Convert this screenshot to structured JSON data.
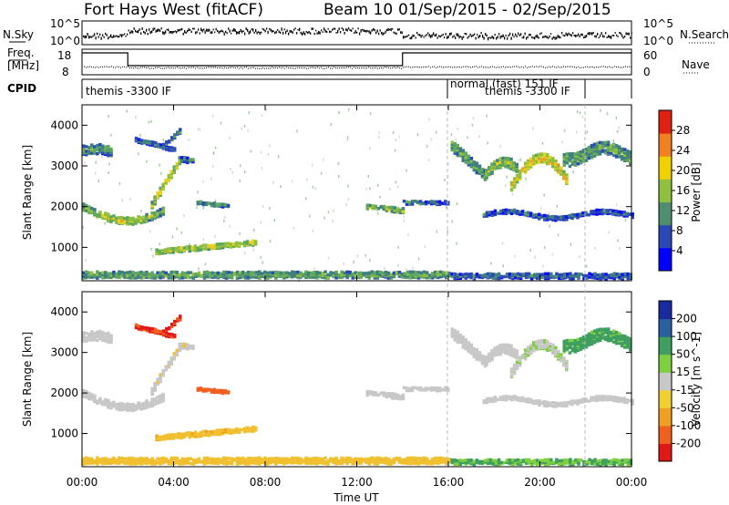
{
  "header": {
    "station": "Fort Hays West (fitACF)",
    "beam": "Beam 10",
    "dates": "01/Sep/2015 - 02/Sep/2015"
  },
  "top_panels": {
    "nsky_label": "N.Sky",
    "nsky_ticks": [
      "10^5",
      "10^0"
    ],
    "nsky_ticks_right": [
      "10^5",
      "10^0"
    ],
    "nsearch_label": "N.Search",
    "freq_label_1": "Freq.",
    "freq_label_2": "[MHz]",
    "freq_ticks": [
      "18",
      "8"
    ],
    "nave_ticks": [
      "60",
      "0"
    ],
    "nave_label": "Nave",
    "cpid_label": "CPID",
    "cpid_segments": [
      {
        "text": "themis -3300 IF",
        "start": 0,
        "end": 16
      },
      {
        "text": "normal (fast) 151 IF",
        "start": 16,
        "end": 22
      },
      {
        "text": "themis -3300 IF",
        "start": 16,
        "end": 22
      }
    ]
  },
  "chart_data": [
    {
      "type": "heatmap",
      "name": "power",
      "xlabel": "",
      "ylabel": "Slant Range [km]",
      "xlim": [
        0,
        24
      ],
      "ylim": [
        180,
        4500
      ],
      "yticks": [
        1000,
        2000,
        3000,
        4000
      ],
      "colorbar": {
        "label": "Power [dB]",
        "ticks": [
          "28",
          "24",
          "20",
          "16",
          "12",
          "8",
          "4"
        ],
        "colors": [
          "#0000ff",
          "#2a48b8",
          "#4f8f6f",
          "#8fc040",
          "#f0d000",
          "#f08020",
          "#e02010"
        ]
      },
      "features": [
        {
          "hour": 1.0,
          "range": 1800,
          "power": 20
        },
        {
          "hour": 3.5,
          "range": 1900,
          "power": 18
        },
        {
          "hour": 5.5,
          "range": 1050,
          "power": 20
        },
        {
          "hour": 10.0,
          "range": 450,
          "power": 18
        },
        {
          "hour": 13.0,
          "range": 1950,
          "power": 16
        },
        {
          "hour": 17.5,
          "range": 3200,
          "power": 18
        },
        {
          "hour": 19.5,
          "range": 2600,
          "power": 24
        },
        {
          "hour": 22.5,
          "range": 3200,
          "power": 18
        }
      ]
    },
    {
      "type": "heatmap",
      "name": "velocity",
      "xlabel": "Time UT",
      "ylabel": "Slant Range [km]",
      "xlim": [
        0,
        24
      ],
      "ylim": [
        180,
        4500
      ],
      "xticks": [
        "00:00",
        "04:00",
        "08:00",
        "12:00",
        "16:00",
        "20:00",
        "00:00"
      ],
      "yticks": [
        1000,
        2000,
        3000,
        4000
      ],
      "colorbar": {
        "label": "Velocity [m s^-1]",
        "ticks": [
          "200",
          "100",
          "50",
          "15",
          "-15",
          "-50",
          "-100",
          "-200"
        ],
        "colors": [
          "#e01818",
          "#f06020",
          "#f0a020",
          "#f0d030",
          "#c8c8c8",
          "#7fd040",
          "#3f9f5f",
          "#2a60a0",
          "#1a2a9f"
        ]
      },
      "features": [
        {
          "hour": 3.8,
          "range": 3500,
          "velocity": -150
        },
        {
          "hour": 1.5,
          "range": 3300,
          "velocity": 0
        },
        {
          "hour": 4.5,
          "range": 2300,
          "velocity": 0
        },
        {
          "hour": 5.3,
          "range": 2100,
          "velocity": -120
        },
        {
          "hour": 6.0,
          "range": 800,
          "velocity": -40
        },
        {
          "hour": 10.0,
          "range": 450,
          "velocity": -40
        },
        {
          "hour": 19.5,
          "range": 3200,
          "velocity": 0
        }
      ]
    }
  ]
}
